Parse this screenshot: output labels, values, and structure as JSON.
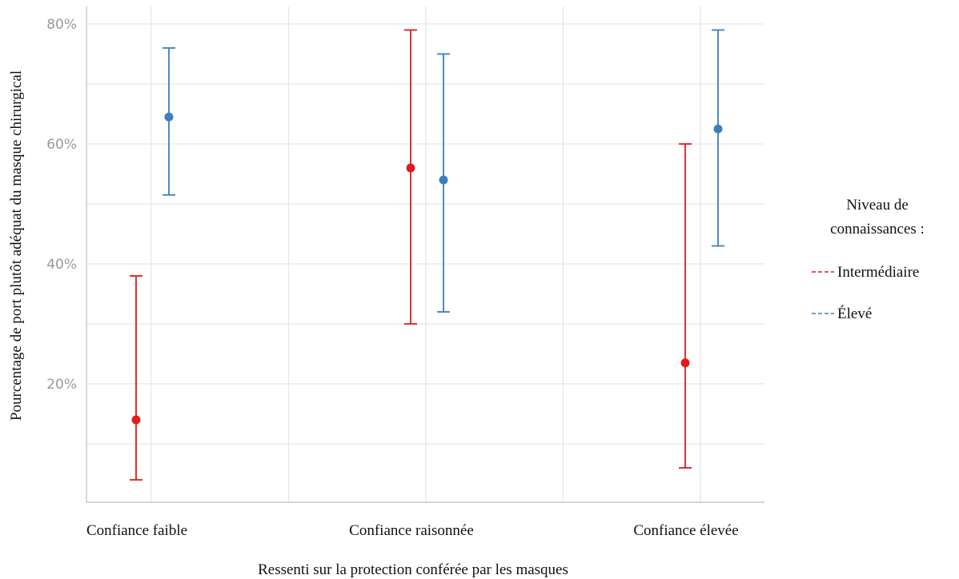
{
  "chart_data": {
    "type": "scatter",
    "subtype": "point-with-error-bars",
    "categories": [
      "Confiance faible",
      "Confiance raisonnée",
      "Confiance élevée"
    ],
    "xlabel": "Ressenti sur la protection conférée par les masques",
    "ylabel": "Pourcentage de port plutôt adéquat du masque chirurgical",
    "ylim": [
      0,
      0.82
    ],
    "yticks": [
      0.2,
      0.4,
      0.6,
      0.8
    ],
    "ytick_labels": [
      "20%",
      "40%",
      "60%",
      "80%"
    ],
    "grid": true,
    "legend": {
      "title_lines": [
        "Niveau de",
        "connaissances :"
      ],
      "placement": "right"
    },
    "series": [
      {
        "name": "Intermédiaire",
        "color": "#e41a1c",
        "values": [
          0.14,
          0.56,
          0.235
        ],
        "lower": [
          0.04,
          0.3,
          0.06
        ],
        "upper": [
          0.38,
          0.79,
          0.6
        ]
      },
      {
        "name": "Élevé",
        "color": "#3c7fbf",
        "values": [
          0.645,
          0.54,
          0.625
        ],
        "lower": [
          0.515,
          0.32,
          0.43
        ],
        "upper": [
          0.76,
          0.75,
          0.79
        ]
      }
    ]
  }
}
